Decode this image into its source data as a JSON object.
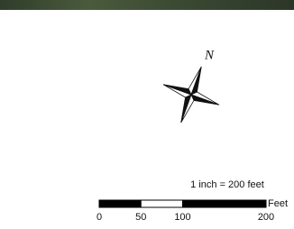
{
  "north_arrow": {
    "label": "N"
  },
  "scale": {
    "text": "1 inch = 200 feet",
    "unit": "Feet",
    "labels": [
      0,
      50,
      100,
      200
    ]
  }
}
